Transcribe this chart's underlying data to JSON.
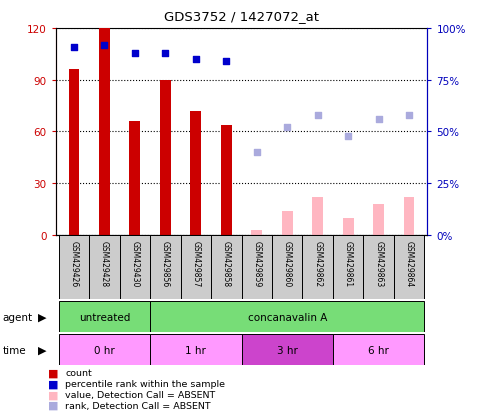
{
  "title": "GDS3752 / 1427072_at",
  "samples": [
    "GSM429426",
    "GSM429428",
    "GSM429430",
    "GSM429856",
    "GSM429857",
    "GSM429858",
    "GSM429859",
    "GSM429860",
    "GSM429862",
    "GSM429861",
    "GSM429863",
    "GSM429864"
  ],
  "count_values": [
    96,
    120,
    66,
    90,
    72,
    64,
    null,
    null,
    null,
    null,
    null,
    null
  ],
  "count_absent": [
    null,
    null,
    null,
    null,
    null,
    null,
    3,
    14,
    22,
    10,
    18,
    22
  ],
  "rank_values": [
    91,
    92,
    88,
    88,
    85,
    84,
    null,
    null,
    null,
    null,
    null,
    null
  ],
  "rank_absent": [
    null,
    null,
    null,
    null,
    null,
    null,
    40,
    52,
    58,
    48,
    56,
    58
  ],
  "ylim_left": [
    0,
    120
  ],
  "ylim_right": [
    0,
    100
  ],
  "yticks_left": [
    0,
    30,
    60,
    90,
    120
  ],
  "yticks_right": [
    0,
    25,
    50,
    75,
    100
  ],
  "ytick_labels_left": [
    "0",
    "30",
    "60",
    "90",
    "120"
  ],
  "ytick_labels_right": [
    "0%",
    "25%",
    "50%",
    "75%",
    "100%"
  ],
  "agent_groups": [
    {
      "label": "untreated",
      "start": 0,
      "end": 3,
      "color": "#77DD77"
    },
    {
      "label": "concanavalin A",
      "start": 3,
      "end": 12,
      "color": "#77DD77"
    }
  ],
  "time_groups": [
    {
      "label": "0 hr",
      "start": 0,
      "end": 3,
      "color": "#FF99FF"
    },
    {
      "label": "1 hr",
      "start": 3,
      "end": 6,
      "color": "#FF99FF"
    },
    {
      "label": "3 hr",
      "start": 6,
      "end": 9,
      "color": "#CC44CC"
    },
    {
      "label": "6 hr",
      "start": 9,
      "end": 12,
      "color": "#FF99FF"
    }
  ],
  "legend_items": [
    {
      "color": "#CC0000",
      "label": "count"
    },
    {
      "color": "#0000CC",
      "label": "percentile rank within the sample"
    },
    {
      "color": "#FFB6C1",
      "label": "value, Detection Call = ABSENT"
    },
    {
      "color": "#AAAADD",
      "label": "rank, Detection Call = ABSENT"
    }
  ],
  "bar_color": "#CC0000",
  "bar_absent_color": "#FFB6C1",
  "rank_color": "#0000CC",
  "rank_absent_color": "#AAAADD",
  "axis_color_left": "#CC0000",
  "axis_color_right": "#0000BB",
  "sample_box_color": "#CCCCCC",
  "bar_width": 0.35
}
